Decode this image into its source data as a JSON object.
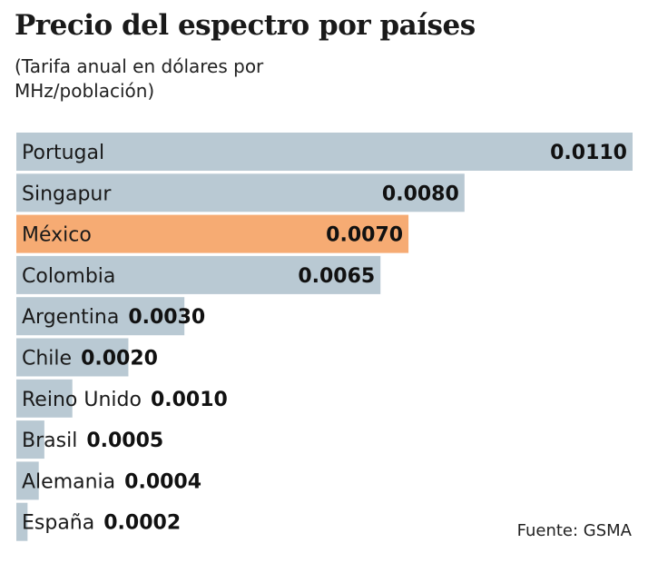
{
  "chart_data": {
    "type": "bar",
    "orientation": "horizontal",
    "title": "Precio del espectro por países",
    "subtitle": "(Tarifa anual en dólares por MHz/población)",
    "categories": [
      "Portugal",
      "Singapur",
      "México",
      "Colombia",
      "Argentina",
      "Chile",
      "Reino Unido",
      "Brasil",
      "Alemania",
      "España"
    ],
    "values": [
      0.011,
      0.008,
      0.007,
      0.0065,
      0.003,
      0.002,
      0.001,
      0.0005,
      0.0004,
      0.0002
    ],
    "value_labels": [
      "0.0110",
      "0.0080",
      "0.0070",
      "0.0065",
      "0.0030",
      "0.0020",
      "0.0010",
      "0.0005",
      "0.0004",
      "0.0002"
    ],
    "highlight": "México",
    "xlim": [
      0,
      0.011
    ],
    "grid": false,
    "source": "Fuente: GSMA"
  },
  "colors": {
    "bar": "#b9c9d3",
    "highlight": "#f6ab73"
  }
}
